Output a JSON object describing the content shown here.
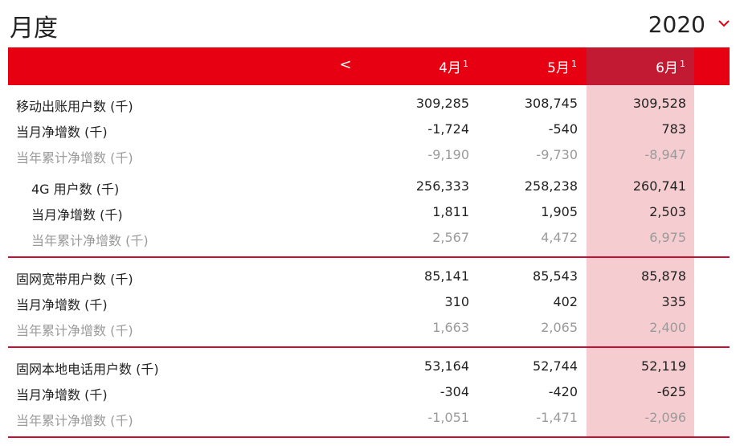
{
  "title": "月度",
  "year": "2020",
  "header": {
    "prev": "<",
    "months": [
      "4月",
      "5月",
      "6月"
    ],
    "footnote": "1"
  },
  "rows": [
    {
      "label": "移动出账用户数 (千)",
      "values": [
        "309,285",
        "308,745",
        "309,528"
      ]
    },
    {
      "label": "当月净增数 (千)",
      "values": [
        "-1,724",
        "-540",
        "783"
      ]
    },
    {
      "label": "当年累计净增数 (千)",
      "values": [
        "-9,190",
        "-9,730",
        "-8,947"
      ]
    },
    {
      "label": "4G 用户数 (千)",
      "values": [
        "256,333",
        "258,238",
        "260,741"
      ]
    },
    {
      "label": "当月净增数 (千)",
      "values": [
        "1,811",
        "1,905",
        "2,503"
      ]
    },
    {
      "label": "当年累计净增数 (千)",
      "values": [
        "2,567",
        "4,472",
        "6,975"
      ]
    },
    {
      "label": "固网宽带用户数 (千)",
      "values": [
        "85,141",
        "85,543",
        "85,878"
      ]
    },
    {
      "label": "当月净增数 (千)",
      "values": [
        "310",
        "402",
        "335"
      ]
    },
    {
      "label": "当年累计净增数 (千)",
      "values": [
        "1,663",
        "2,065",
        "2,400"
      ]
    },
    {
      "label": "固网本地电话用户数 (千)",
      "values": [
        "53,164",
        "52,744",
        "52,119"
      ]
    },
    {
      "label": "当月净增数 (千)",
      "values": [
        "-304",
        "-420",
        "-625"
      ]
    },
    {
      "label": "当年累计净增数 (千)",
      "values": [
        "-1,051",
        "-1,471",
        "-2,096"
      ]
    }
  ]
}
